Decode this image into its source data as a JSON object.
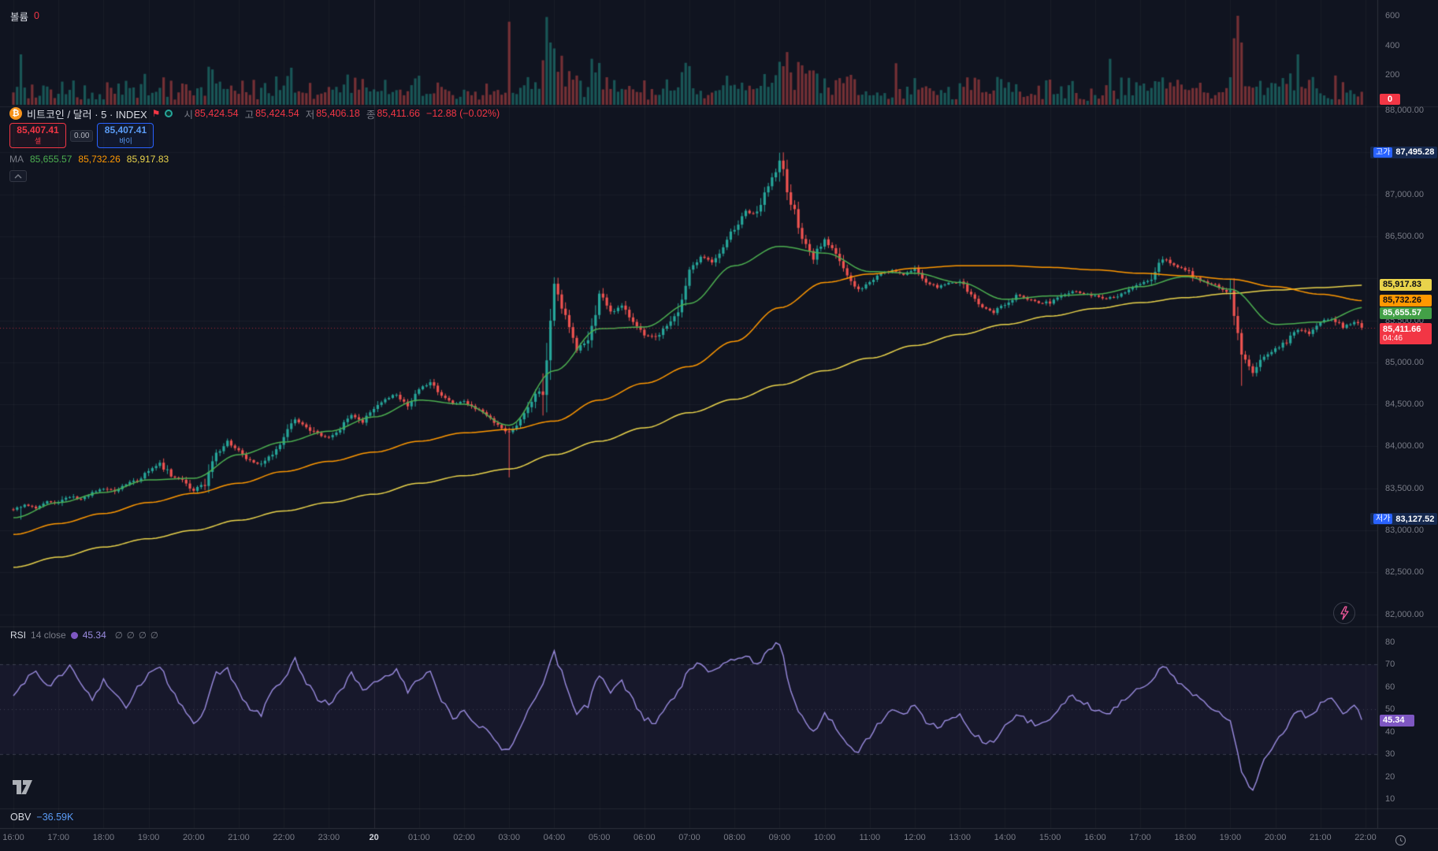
{
  "colors": {
    "background": "#101420",
    "up": "#26a69a",
    "down": "#ef5350",
    "ma_fast": "#4caf50",
    "ma_mid": "#ff9800",
    "ma_slow": "#e9d34b",
    "rsi_line": "#9b8ce0",
    "accent_red": "#f23645",
    "accent_blue": "#2962ff"
  },
  "volume_pane": {
    "label": "볼륨",
    "value": "0",
    "zero_badge": "0"
  },
  "header": {
    "title": "비트코인 / 달러 · 5 · INDEX",
    "ohlc": {
      "open_label": "시",
      "open": "85,424.54",
      "high_label": "고",
      "high": "85,424.54",
      "low_label": "저",
      "low": "85,406.18",
      "close_label": "종",
      "close": "85,411.66",
      "change": "−12.88 (−0.02%)"
    }
  },
  "trade_widget": {
    "sell_price": "85,407.41",
    "sell_label": "셀",
    "spread": "0.00",
    "buy_price": "85,407.41",
    "buy_label": "바이"
  },
  "ma_legend": {
    "label": "MA",
    "fast": "85,655.57",
    "mid": "85,732.26",
    "slow": "85,917.83"
  },
  "price_axis": {
    "ticks": [
      "88,000.00",
      "87,000.00",
      "86,500.00",
      "85,500.00",
      "85,000.00",
      "84,500.00",
      "84,000.00",
      "83,500.00",
      "83,000.00",
      "82,500.00",
      "82,000.00"
    ],
    "high_badge": {
      "label": "고가",
      "value": "87,495.28"
    },
    "low_badge": {
      "label": "저가",
      "value": "83,127.52"
    },
    "ma_badges": [
      {
        "value": "85,917.83",
        "color": "#e9d34b"
      },
      {
        "value": "85,732.26",
        "color": "#ff9800"
      },
      {
        "value": "85,655.57",
        "color": "#43a047"
      }
    ],
    "last_badge": {
      "price": "85,411.66",
      "countdown": "04:46"
    }
  },
  "rsi_pane": {
    "title": "RSI",
    "params": "14 close",
    "value": "45.34",
    "empty_args": [
      "∅",
      "∅",
      "∅",
      "∅"
    ],
    "badge": "45.34"
  },
  "obv_pane": {
    "label": "OBV",
    "value": "−36.59K"
  },
  "time_axis": {
    "labels": [
      "16:00",
      "17:00",
      "18:00",
      "19:00",
      "20:00",
      "21:00",
      "22:00",
      "23:00",
      "20",
      "01:00",
      "02:00",
      "03:00",
      "04:00",
      "05:00",
      "06:00",
      "07:00",
      "08:00",
      "09:00",
      "10:00",
      "11:00",
      "12:00",
      "13:00",
      "14:00",
      "15:00",
      "16:00",
      "17:00",
      "18:00",
      "19:00",
      "20:00",
      "21:00",
      "22:00"
    ],
    "emphasized_index": 8
  },
  "chart_data": [
    {
      "type": "bar",
      "name": "volume",
      "title": "볼륨",
      "ylim": [
        0,
        620
      ],
      "axis_ticks": [
        600,
        400,
        200
      ],
      "current": 0,
      "overrides": {
        "2": 340,
        "74": 250,
        "132": 560,
        "141": 300,
        "143": 420,
        "144": 380,
        "204": 290,
        "205": 260,
        "235": 280,
        "292": 310,
        "326": 600,
        "327": 420,
        "342": 340
      }
    },
    {
      "type": "candlestick",
      "name": "price",
      "interval": "5m",
      "time_start": "16:00",
      "time_end": "22:00",
      "anchor_step_minutes": 15,
      "ylim": [
        82000,
        88000
      ],
      "session_high": 87495.28,
      "session_low": 83127.52,
      "last_close": 85411.66,
      "last_ohlc": {
        "open": 85424.54,
        "high": 85424.54,
        "low": 85406.18,
        "close": 85411.66,
        "change": -12.88,
        "change_pct": -0.02
      },
      "close_anchors": [
        83250,
        83300,
        83270,
        83340,
        83320,
        83400,
        83370,
        83450,
        83500,
        83470,
        83550,
        83600,
        83700,
        83790,
        83650,
        83600,
        83480,
        83560,
        83900,
        84050,
        83950,
        83820,
        83780,
        83900,
        84100,
        84330,
        84240,
        84150,
        84100,
        84210,
        84380,
        84300,
        84450,
        84560,
        84620,
        84500,
        84680,
        84750,
        84600,
        84500,
        84550,
        84450,
        84380,
        84250,
        84150,
        84310,
        84500,
        84760,
        85900,
        85550,
        85150,
        85280,
        85800,
        85600,
        85690,
        85500,
        85320,
        85280,
        85450,
        85610,
        86100,
        86250,
        86200,
        86400,
        86600,
        86800,
        86750,
        87100,
        87400,
        86900,
        86500,
        86250,
        86450,
        86300,
        86050,
        85850,
        85950,
        86050,
        86100,
        86050,
        86100,
        85950,
        85900,
        85950,
        85950,
        85800,
        85650,
        85600,
        85700,
        85800,
        85750,
        85700,
        85720,
        85800,
        85850,
        85820,
        85800,
        85760,
        85800,
        85850,
        85920,
        86000,
        86250,
        86150,
        86100,
        86000,
        85950,
        85900,
        85800,
        85100,
        84900,
        85050,
        85150,
        85250,
        85400,
        85350,
        85480,
        85520,
        85420,
        85480,
        85411.66
      ],
      "candle_overrides": {
        "2": {
          "low": 83127.52
        },
        "132": {
          "low": 83630
        },
        "204": {
          "high": 87495.28
        },
        "327": {
          "low": 84720
        }
      },
      "moving_averages": [
        {
          "label": "MA slow",
          "color": "#e9d34b",
          "last": 85917.83,
          "hourly": [
            82560,
            82680,
            82800,
            82900,
            83000,
            83120,
            83230,
            83330,
            83430,
            83560,
            83650,
            83730,
            83900,
            84060,
            84220,
            84400,
            84560,
            84730,
            84900,
            85050,
            85200,
            85330,
            85450,
            85550,
            85640,
            85710,
            85770,
            85820,
            85860,
            85890,
            85917.83
          ]
        },
        {
          "label": "MA mid",
          "color": "#ff9800",
          "last": 85732.26,
          "hourly": [
            82950,
            83080,
            83200,
            83330,
            83440,
            83560,
            83700,
            83820,
            83930,
            84060,
            84160,
            84200,
            84300,
            84550,
            84750,
            84950,
            85250,
            85650,
            85950,
            86050,
            86120,
            86150,
            86150,
            86130,
            86100,
            86060,
            86030,
            85990,
            85900,
            85810,
            85732.26
          ]
        },
        {
          "label": "MA fast",
          "color": "#4caf50",
          "last": 85655.57,
          "hourly": [
            83150,
            83330,
            83450,
            83600,
            83620,
            83900,
            84050,
            84180,
            84350,
            84550,
            84500,
            84250,
            84900,
            85400,
            85420,
            85700,
            86150,
            86380,
            86300,
            86080,
            86060,
            85950,
            85750,
            85790,
            85810,
            85900,
            86020,
            85870,
            85450,
            85480,
            85655.57
          ]
        }
      ]
    },
    {
      "type": "line",
      "name": "rsi",
      "title": "RSI 14 close",
      "ylim": [
        10,
        80
      ],
      "axis_ticks": [
        80,
        70,
        60,
        50,
        40,
        30,
        20,
        10
      ],
      "upper_band": 70,
      "lower_band": 30,
      "middle": 50,
      "last": 45.34,
      "values_15min": [
        55,
        62,
        68,
        60,
        64,
        70,
        62,
        55,
        63,
        58,
        50,
        60,
        66,
        70,
        58,
        52,
        44,
        50,
        66,
        68,
        58,
        50,
        48,
        58,
        64,
        72,
        62,
        55,
        52,
        58,
        66,
        58,
        62,
        65,
        68,
        58,
        64,
        66,
        54,
        46,
        50,
        44,
        40,
        34,
        31,
        42,
        52,
        62,
        75,
        62,
        48,
        52,
        66,
        58,
        62,
        54,
        46,
        44,
        52,
        58,
        68,
        71,
        66,
        70,
        72,
        74,
        70,
        76,
        80,
        58,
        46,
        40,
        48,
        42,
        35,
        31,
        38,
        45,
        50,
        47,
        52,
        44,
        42,
        46,
        48,
        40,
        36,
        35,
        42,
        48,
        45,
        43,
        46,
        52,
        56,
        53,
        50,
        47,
        52,
        56,
        60,
        63,
        70,
        64,
        60,
        56,
        52,
        49,
        44,
        22,
        14,
        28,
        35,
        42,
        50,
        46,
        52,
        55,
        47,
        51,
        45.34
      ]
    }
  ]
}
